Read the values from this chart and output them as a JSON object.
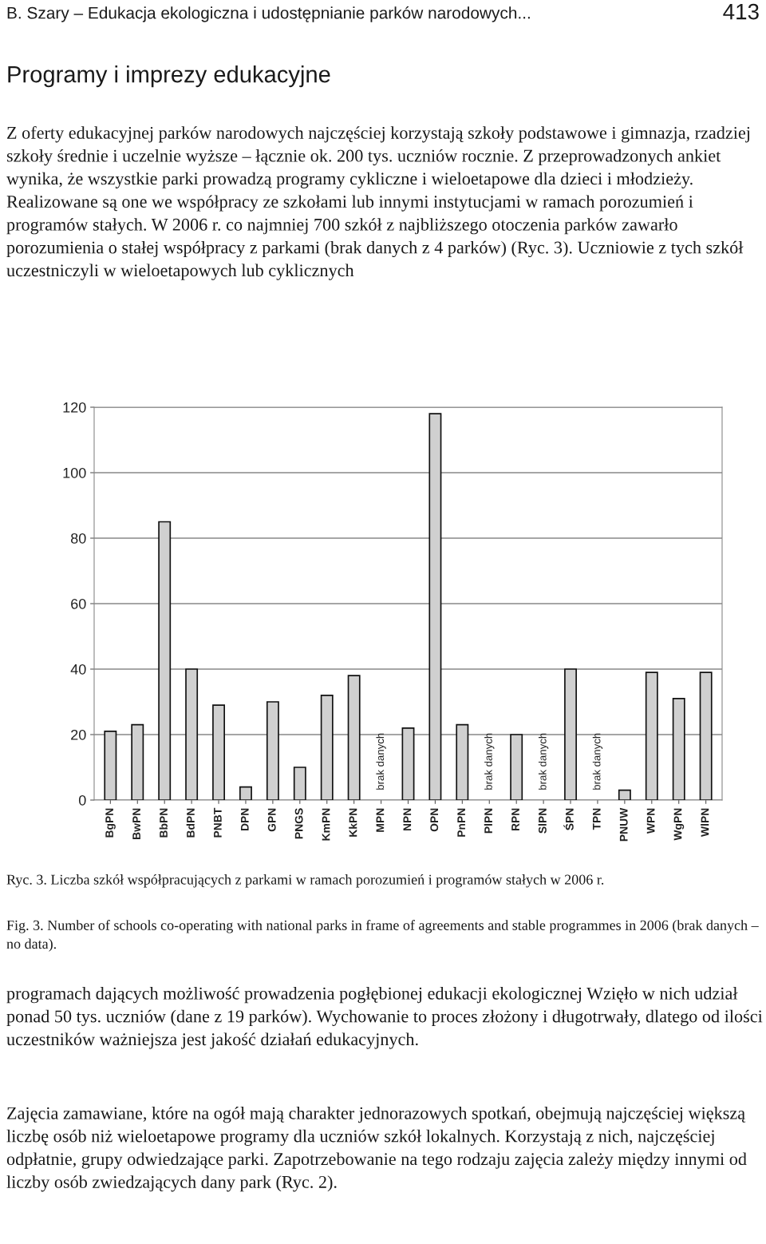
{
  "chart_data": {
    "type": "bar",
    "categories": [
      "BgPN",
      "BwPN",
      "BbPN",
      "BdPN",
      "PNBT",
      "DPN",
      "GPN",
      "PNGS",
      "KmPN",
      "KkPN",
      "MPN",
      "NPN",
      "OPN",
      "PnPN",
      "PlPN",
      "RPN",
      "SlPN",
      "ŚPN",
      "TPN",
      "PNUW",
      "WPN",
      "WgPN",
      "WlPN"
    ],
    "values": [
      21,
      23,
      85,
      40,
      29,
      4,
      30,
      10,
      32,
      38,
      null,
      22,
      118,
      23,
      null,
      20,
      null,
      40,
      null,
      3,
      39,
      31,
      39
    ],
    "value_labels": [
      null,
      null,
      null,
      null,
      null,
      null,
      null,
      null,
      null,
      null,
      "brak danych",
      null,
      null,
      null,
      "brak danych",
      null,
      "brak danych",
      null,
      "brak danych",
      null,
      null,
      null,
      null
    ],
    "color": "#d0d0d0",
    "ylim": [
      0,
      120
    ],
    "yticks": [
      0,
      20,
      40,
      60,
      80,
      100,
      120
    ],
    "grid": "y",
    "annotations": [
      "B. Szary – Edukacja ekologiczna i udostępnianie parków narodowych...",
      "413",
      "Programy i imprezy edukacyjne",
      "Z oferty edukacyjnej parków narodowych najczęściej korzystają szkoły podstawowe i gimnazja, rzadziej szkoły średnie i uczelnie wyższe – łącznie ok. 200 tys. uczniów rocznie. Z przeprowadzonych ankiet wynika, że wszystkie parki prowadzą programy cykliczne i wieloetapowe dla dzieci i młodzieży. Realizowane są one we współpracy ze szkołami lub innymi instytucjami w ramach porozumień i programów stałych. W 2006 r. co najmniej 700 szkół z najbliższego otoczenia parków zawarło porozumienia o stałej współpracy z parkami (brak danych z 4 parków) (Ryc. 3). Uczniowie z tych szkół uczestniczyli w wieloetapowych lub cyklicznych",
      "Ryc. 3. Liczba szkół współpracujących z parkami w ramach porozumień i programów stałych w 2006 r.",
      "Fig. 3. Number of schools co-operating with national parks in frame of agreements and stable programmes in 2006 (brak danych – no data).",
      "programach dających możliwość prowadzenia pogłębionej edukacji ekologicznej Wzięło w nich udział ponad 50 tys. uczniów (dane z 19 parków). Wychowanie to proces złożony i długotrwały, dlatego od ilości uczestników ważniejsza jest jakość działań edukacyjnych.",
      "Zajęcia zamawiane, które na ogół mają charakter jednorazowych spotkań, obejmują najczęściej większą liczbę osób niż wieloetapowe programy dla uczniów szkół lokalnych. Korzystają z nich, najczęściej odpłatnie, grupy odwiedzające parki. Zapotrzebowanie na tego rodzaju zajęcia zależy między innymi od liczby osób zwiedzających dany park (Ryc. 2)."
    ]
  }
}
